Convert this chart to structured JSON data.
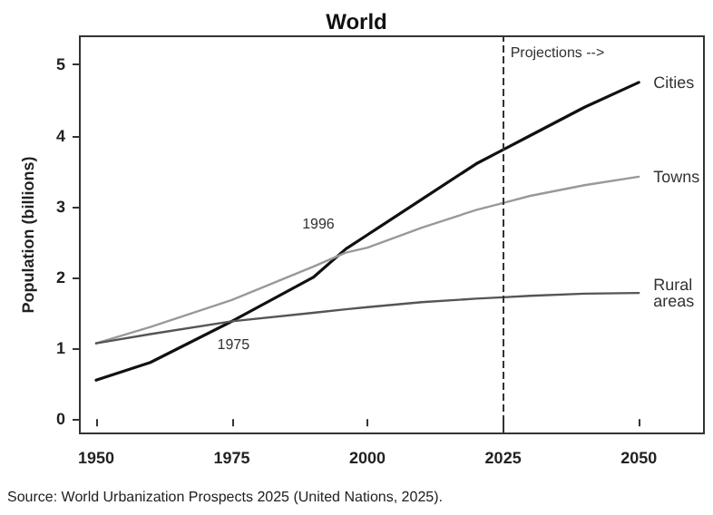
{
  "chart_data": {
    "type": "line",
    "title": "World",
    "ylabel": "Population (billions)",
    "x": [
      1950,
      1960,
      1975,
      1990,
      1996,
      2000,
      2010,
      2020,
      2025,
      2030,
      2040,
      2050
    ],
    "series": [
      {
        "name": "Cities",
        "color": "#111111",
        "values": [
          0.55,
          0.8,
          1.38,
          2.0,
          2.4,
          2.6,
          3.1,
          3.6,
          3.8,
          4.0,
          4.4,
          4.75
        ]
      },
      {
        "name": "Towns",
        "color": "#999999",
        "values": [
          1.07,
          1.3,
          1.68,
          2.15,
          2.35,
          2.42,
          2.7,
          2.95,
          3.05,
          3.15,
          3.3,
          3.42
        ]
      },
      {
        "name": "Rural areas",
        "color": "#555555",
        "values": [
          1.07,
          1.2,
          1.38,
          1.5,
          1.55,
          1.58,
          1.65,
          1.7,
          1.72,
          1.74,
          1.77,
          1.78
        ]
      }
    ],
    "xlim": [
      1947,
      2062
    ],
    "xticks": [
      1950,
      1975,
      2000,
      2025,
      2050
    ],
    "ylim": [
      -0.2,
      5.4
    ],
    "yticks": [
      0,
      1,
      2,
      3,
      4,
      5
    ],
    "ref_lines": [
      {
        "axis": "x",
        "value": 2025,
        "label": "Projections -->",
        "line_style": "dashed",
        "color": "#333333"
      }
    ],
    "annotations": [
      {
        "text": "1975",
        "x": 1975,
        "y": 1.38
      },
      {
        "text": "1996",
        "x": 1996,
        "y": 2.4
      },
      "Source: World Urbanization Prospects 2025 (United Nations, 2025)."
    ],
    "grid": false,
    "legend": false,
    "marker": "none",
    "line_style": "solid"
  }
}
